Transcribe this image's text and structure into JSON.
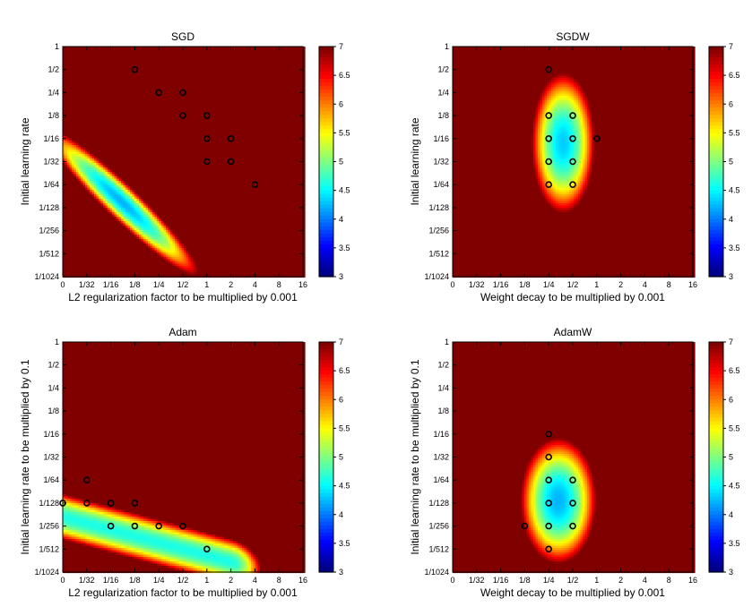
{
  "chart_data": [
    {
      "type": "heatmap",
      "title": "SGD",
      "xlabel": "L2 regularization factor to be multiplied by 0.001",
      "ylabel": "Initial learning rate",
      "x_ticks": [
        "0",
        "1/32",
        "1/16",
        "1/8",
        "1/4",
        "1/2",
        "1",
        "2",
        "4",
        "8",
        "16"
      ],
      "y_ticks": [
        "1",
        "1/2",
        "1/4",
        "1/8",
        "1/16",
        "1/32",
        "1/64",
        "1/128",
        "1/256",
        "1/512",
        "1/1024"
      ],
      "colorbar": {
        "min": 3,
        "max": 7,
        "ticks": [
          "3",
          "3.5",
          "4",
          "4.5",
          "5",
          "5.5",
          "6",
          "6.5",
          "7"
        ]
      },
      "min_value": 4.2,
      "band": {
        "type": "diagonal",
        "offset": 4.3,
        "sigma_across": 0.95,
        "along_center": 4.6,
        "sigma_along": 3.0
      },
      "best_points": [
        {
          "x": "1/8",
          "y": "1/2"
        },
        {
          "x": "1/4",
          "y": "1/4"
        },
        {
          "x": "1/2",
          "y": "1/4"
        },
        {
          "x": "1/2",
          "y": "1/8"
        },
        {
          "x": "1",
          "y": "1/8"
        },
        {
          "x": "1",
          "y": "1/16"
        },
        {
          "x": "2",
          "y": "1/16"
        },
        {
          "x": "1",
          "y": "1/32"
        },
        {
          "x": "2",
          "y": "1/32"
        },
        {
          "x": "4",
          "y": "1/64"
        }
      ]
    },
    {
      "type": "heatmap",
      "title": "SGDW",
      "xlabel": "Weight decay to be multiplied by 0.001",
      "ylabel": "Initial learning rate",
      "x_ticks": [
        "0",
        "1/32",
        "1/16",
        "1/8",
        "1/4",
        "1/2",
        "1",
        "2",
        "4",
        "8",
        "16"
      ],
      "y_ticks": [
        "1",
        "1/2",
        "1/4",
        "1/8",
        "1/16",
        "1/32",
        "1/64",
        "1/128",
        "1/256",
        "1/512",
        "1/1024"
      ],
      "colorbar": {
        "min": 3,
        "max": 7,
        "ticks": [
          "3",
          "3.5",
          "4",
          "4.5",
          "5",
          "5.5",
          "6",
          "6.5",
          "7"
        ]
      },
      "min_value": 4.3,
      "band": {
        "type": "blob",
        "cx": 4.6,
        "cy": 4.2,
        "sx": 1.25,
        "sy": 2.9
      },
      "best_points": [
        {
          "x": "1/4",
          "y": "1/2"
        },
        {
          "x": "1/4",
          "y": "1/8"
        },
        {
          "x": "1/2",
          "y": "1/8"
        },
        {
          "x": "1/4",
          "y": "1/16"
        },
        {
          "x": "1/2",
          "y": "1/16"
        },
        {
          "x": "1",
          "y": "1/16"
        },
        {
          "x": "1/4",
          "y": "1/32"
        },
        {
          "x": "1/2",
          "y": "1/32"
        },
        {
          "x": "1/4",
          "y": "1/64"
        },
        {
          "x": "1/2",
          "y": "1/64"
        }
      ]
    },
    {
      "type": "heatmap",
      "title": "Adam",
      "xlabel": "L2 regularization factor to be multiplied by 0.001",
      "ylabel": "Initial learning rate to be multiplied by 0.1",
      "x_ticks": [
        "0",
        "1/32",
        "1/16",
        "1/8",
        "1/4",
        "1/2",
        "1",
        "2",
        "4",
        "8",
        "16"
      ],
      "y_ticks": [
        "1",
        "1/2",
        "1/4",
        "1/8",
        "1/16",
        "1/32",
        "1/64",
        "1/128",
        "1/256",
        "1/512",
        "1/1024"
      ],
      "colorbar": {
        "min": 3,
        "max": 7,
        "ticks": [
          "3",
          "3.5",
          "4",
          "4.5",
          "5",
          "5.5",
          "6",
          "6.5",
          "7"
        ]
      },
      "min_value": 4.6,
      "band": {
        "type": "hband",
        "cy": 7.6,
        "slope": 0.28,
        "sy": 0.95,
        "xmax": 7.0
      },
      "best_points": [
        {
          "x": "1/32",
          "y": "1/64"
        },
        {
          "x": "0",
          "y": "1/128"
        },
        {
          "x": "1/32",
          "y": "1/128"
        },
        {
          "x": "1/16",
          "y": "1/128"
        },
        {
          "x": "1/8",
          "y": "1/128"
        },
        {
          "x": "1/16",
          "y": "1/256"
        },
        {
          "x": "1/8",
          "y": "1/256"
        },
        {
          "x": "1/4",
          "y": "1/256"
        },
        {
          "x": "1/2",
          "y": "1/256"
        },
        {
          "x": "1",
          "y": "1/512"
        }
      ]
    },
    {
      "type": "heatmap",
      "title": "AdamW",
      "xlabel": "Weight decay to be multiplied by 0.001",
      "ylabel": "Initial learning rate to be multiplied by 0.1",
      "x_ticks": [
        "0",
        "1/32",
        "1/16",
        "1/8",
        "1/4",
        "1/2",
        "1",
        "2",
        "4",
        "8",
        "16"
      ],
      "y_ticks": [
        "1",
        "1/2",
        "1/4",
        "1/8",
        "1/16",
        "1/32",
        "1/64",
        "1/128",
        "1/256",
        "1/512",
        "1/1024"
      ],
      "colorbar": {
        "min": 3,
        "max": 7,
        "ticks": [
          "3",
          "3.5",
          "4",
          "4.5",
          "5",
          "5.5",
          "6",
          "6.5",
          "7"
        ]
      },
      "min_value": 4.2,
      "band": {
        "type": "blob",
        "cx": 4.4,
        "cy": 6.9,
        "sx": 1.5,
        "sy": 2.6
      },
      "best_points": [
        {
          "x": "1/4",
          "y": "1/16"
        },
        {
          "x": "1/4",
          "y": "1/32"
        },
        {
          "x": "1/4",
          "y": "1/64"
        },
        {
          "x": "1/2",
          "y": "1/64"
        },
        {
          "x": "1/4",
          "y": "1/128"
        },
        {
          "x": "1/2",
          "y": "1/128"
        },
        {
          "x": "1/8",
          "y": "1/256"
        },
        {
          "x": "1/4",
          "y": "1/256"
        },
        {
          "x": "1/2",
          "y": "1/256"
        },
        {
          "x": "1/4",
          "y": "1/512"
        }
      ]
    }
  ]
}
